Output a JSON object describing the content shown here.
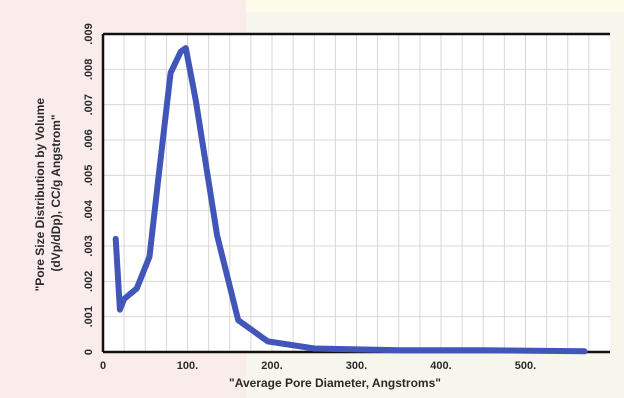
{
  "colors": {
    "series": "#4255b8",
    "axis": "#111111",
    "grid": "#d8d8d4",
    "plot_background": "#ffffff",
    "text": "#2a2a2a"
  },
  "chart_data": {
    "type": "line",
    "title": "",
    "xlabel": "\"Average Pore Diameter, Angstroms\"",
    "ylabel": "\"Pore Size Distribution by Volume (dVp/dDp), CC/g Angstrom\"",
    "ylabel_lines": [
      "\"Pore Size Distribution by Volume",
      "(dVp/dDp), CC/g Angstrom\""
    ],
    "xlim": [
      0,
      600
    ],
    "ylim": [
      0,
      0.009
    ],
    "x_ticks": [
      0,
      100,
      200,
      300,
      400,
      500
    ],
    "x_tick_labels": [
      "0",
      "100.",
      "200.",
      "300.",
      "400.",
      "500."
    ],
    "y_ticks": [
      0,
      0.001,
      0.002,
      0.003,
      0.004,
      0.005,
      0.006,
      0.007,
      0.008,
      0.009
    ],
    "y_tick_labels": [
      "0",
      ".001",
      ".002",
      ".003",
      ".004",
      ".005",
      ".006",
      ".007",
      ".008",
      ".009"
    ],
    "grid": true,
    "series": [
      {
        "x": [
          15,
          20,
          25,
          40,
          55,
          65,
          80,
          92,
          98,
          110,
          135,
          160,
          195,
          250,
          350,
          450,
          570
        ],
        "y": [
          0.0032,
          0.0012,
          0.0015,
          0.0018,
          0.0027,
          0.0048,
          0.0079,
          0.0085,
          0.0086,
          0.0071,
          0.0033,
          0.0009,
          0.0003,
          0.0001,
          5e-05,
          5e-05,
          2e-05
        ]
      }
    ]
  }
}
